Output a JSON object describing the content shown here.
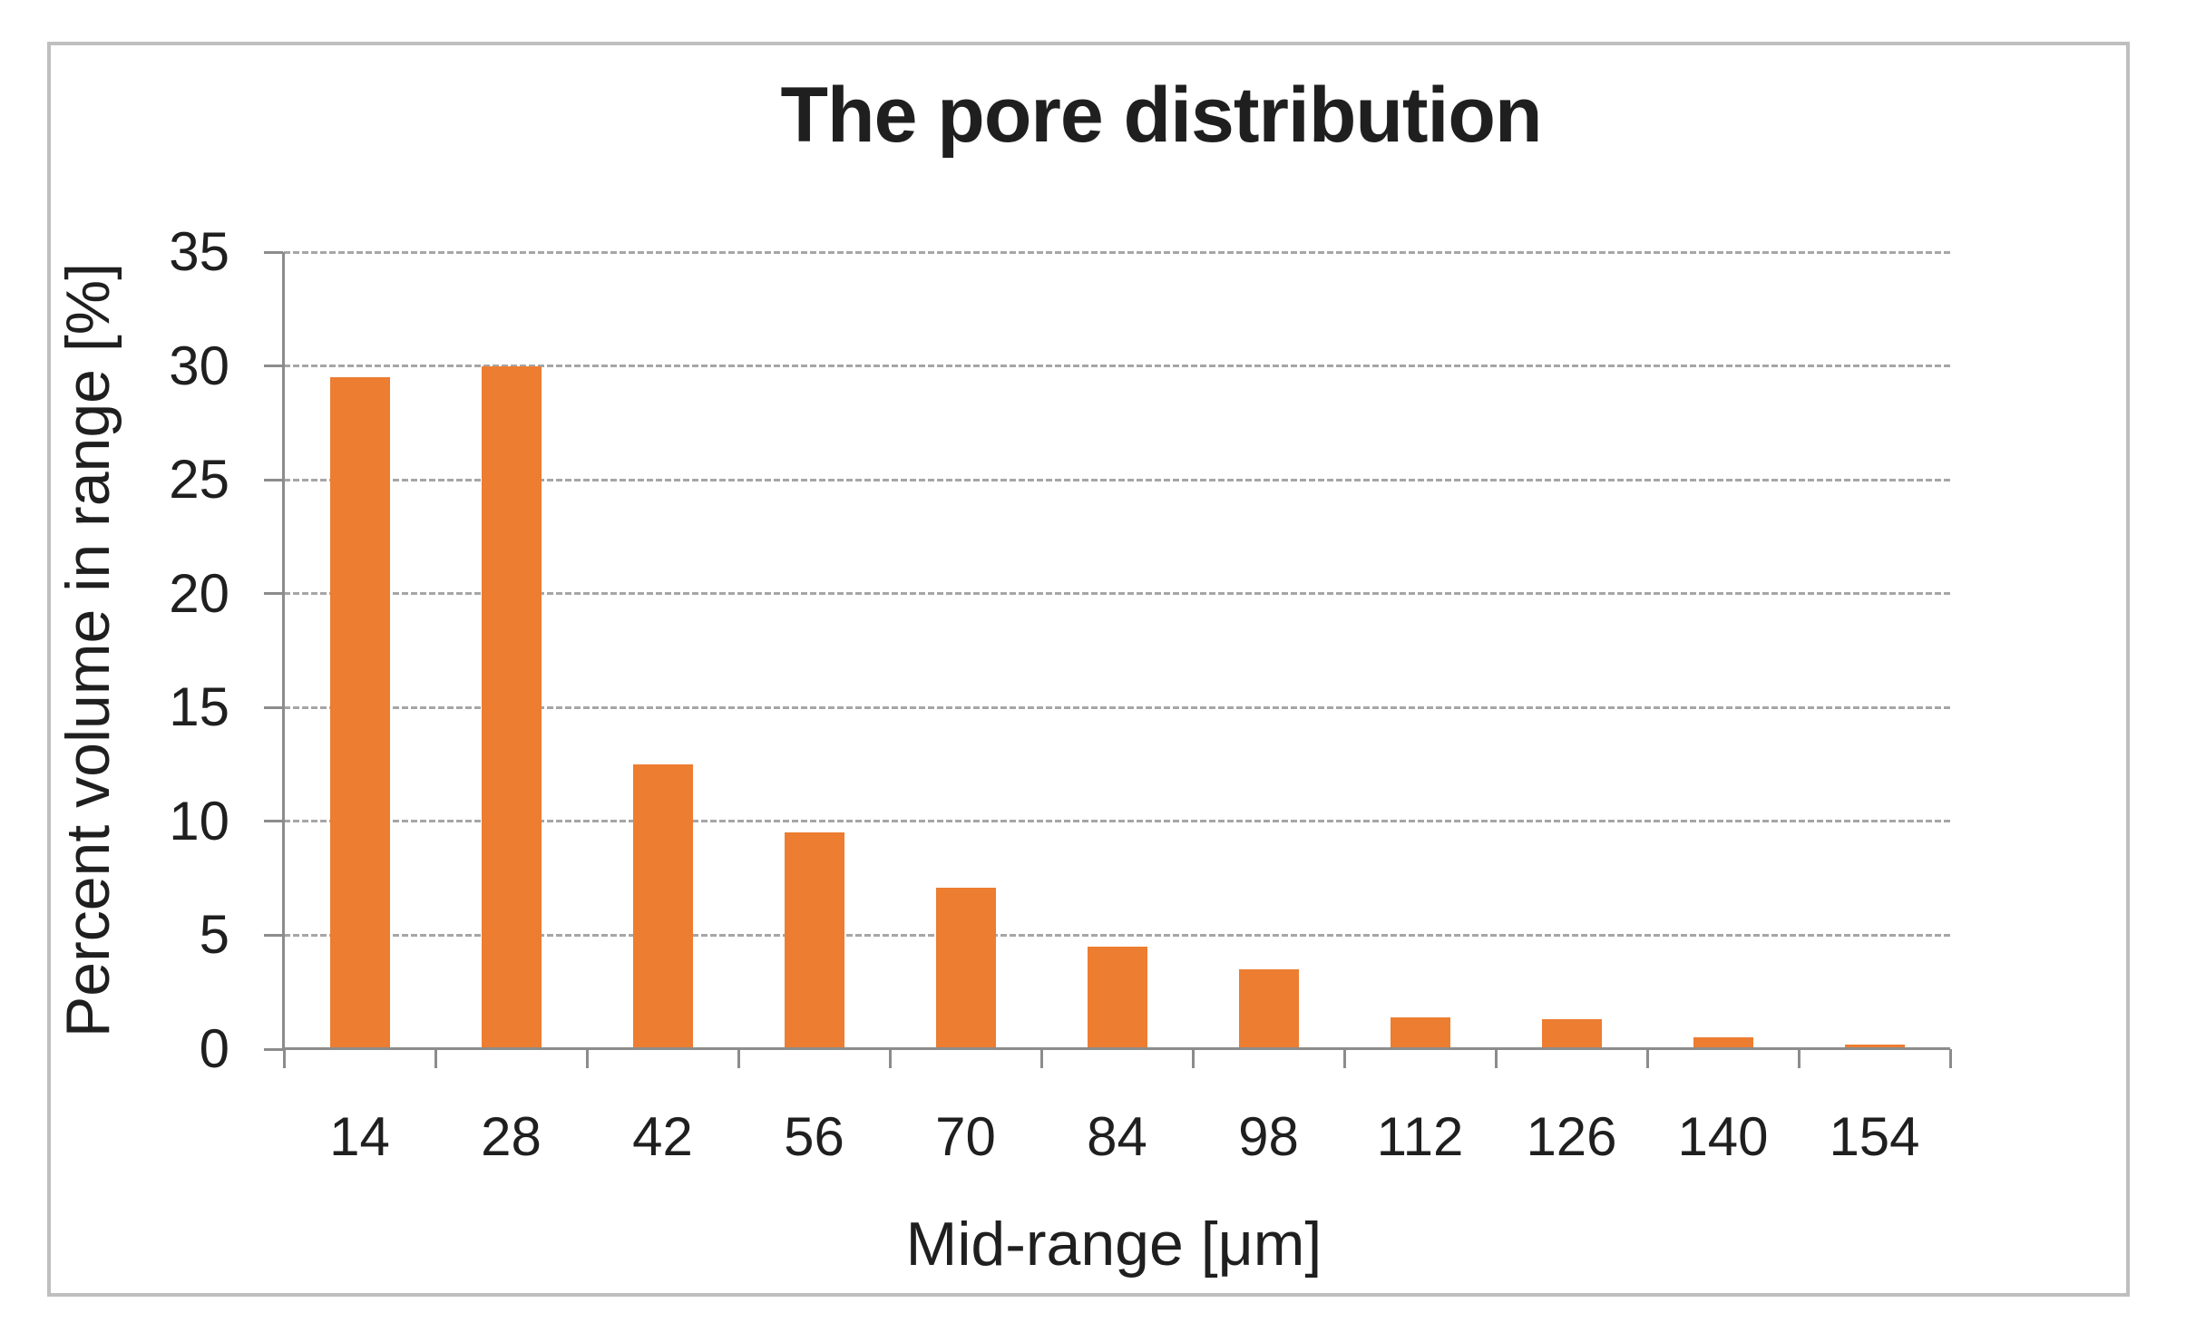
{
  "chart": {
    "frame_border_color": "#bfbfbf"
  },
  "chart_data": {
    "type": "bar",
    "title": "The pore distribution",
    "xlabel": "Mid-range [μm]",
    "ylabel": "Percent volume in range [%]",
    "categories": [
      "14",
      "28",
      "42",
      "56",
      "70",
      "84",
      "98",
      "112",
      "126",
      "140",
      "154"
    ],
    "values": [
      29.5,
      30,
      12.5,
      9.5,
      7.1,
      4.5,
      3.5,
      1.4,
      1.3,
      0.5,
      0.2
    ],
    "ylim": [
      0,
      35
    ],
    "y_ticks": [
      0,
      5,
      10,
      15,
      20,
      25,
      30,
      35
    ],
    "grid": true,
    "legend": false,
    "bar_color": "#ED7D31",
    "gridline_color": "#A6A6A6",
    "axis_line_color": "#8C8C8C",
    "text_color": "#1F1F1F"
  }
}
